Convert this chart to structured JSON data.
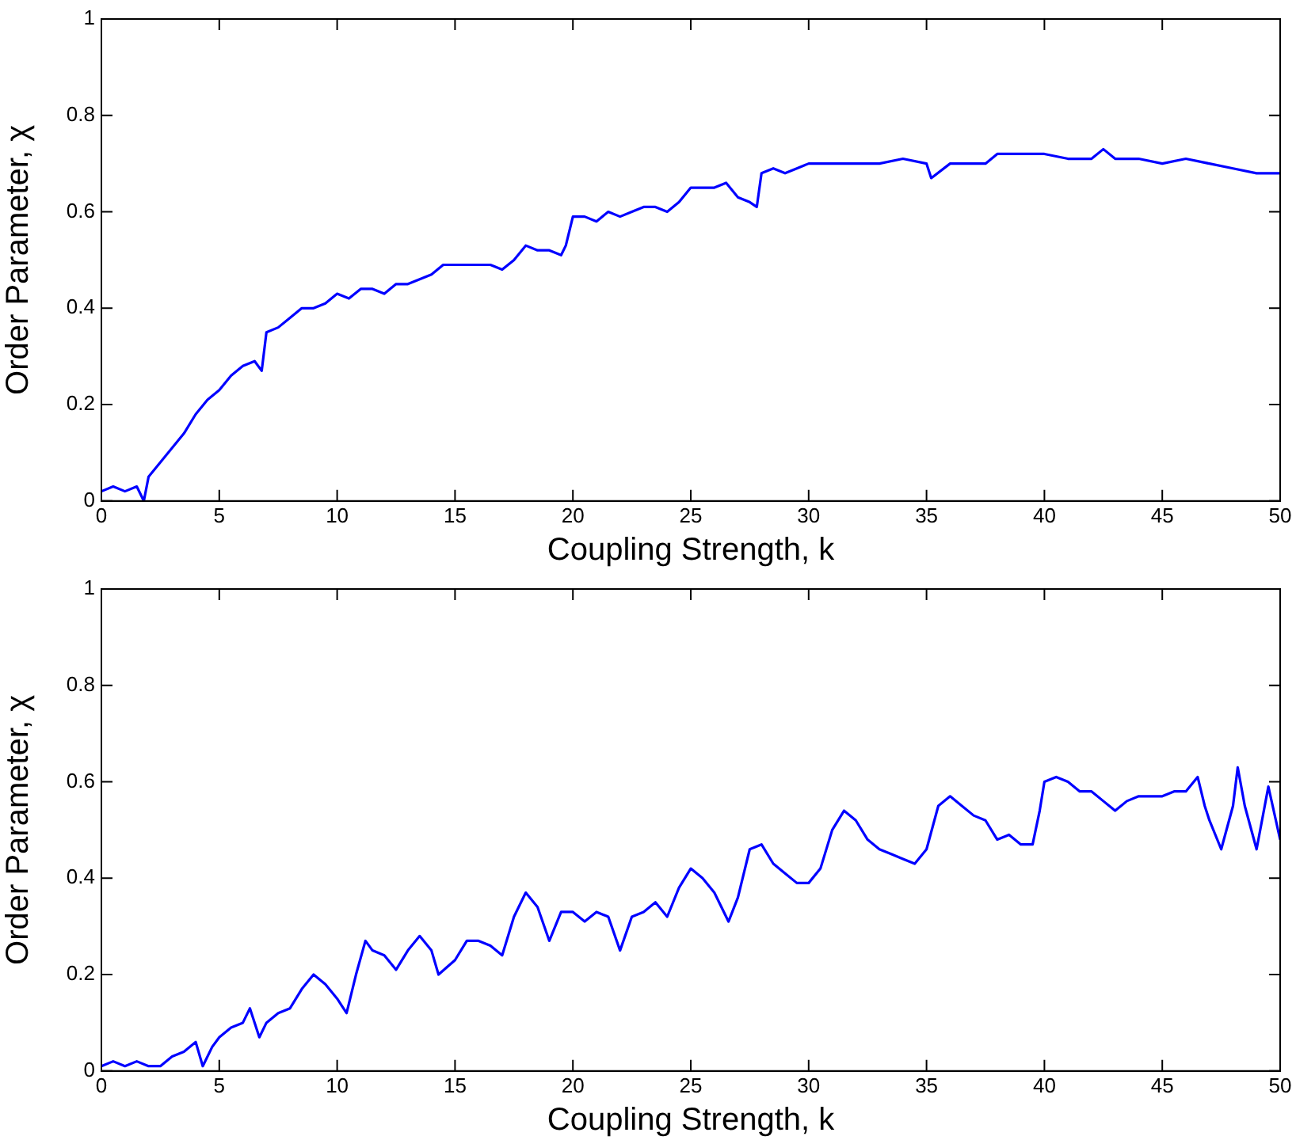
{
  "chart_data": [
    {
      "type": "line",
      "xlabel": "Coupling Strength, k",
      "ylabel": "Order Parameter, χ",
      "color": "#0000ff",
      "marker": "none",
      "xlim": [
        0,
        50
      ],
      "ylim": [
        0,
        1
      ],
      "xticks": [
        0,
        5,
        10,
        15,
        20,
        25,
        30,
        35,
        40,
        45,
        50
      ],
      "yticks": [
        0,
        0.2,
        0.4,
        0.6,
        0.8,
        1
      ],
      "x": [
        0,
        0.5,
        1,
        1.5,
        1.8,
        2,
        2.5,
        3,
        3.5,
        4,
        4.5,
        5,
        5.5,
        6,
        6.5,
        6.8,
        7,
        7.5,
        8,
        8.5,
        9,
        9.5,
        10,
        10.5,
        11,
        11.5,
        12,
        12.5,
        13,
        13.5,
        14,
        14.5,
        15,
        15.5,
        16,
        16.5,
        17,
        17.5,
        18,
        18.5,
        19,
        19.5,
        19.7,
        20,
        20.5,
        21,
        21.5,
        22,
        22.5,
        23,
        23.5,
        24,
        24.5,
        25,
        25.5,
        26,
        26.5,
        27,
        27.5,
        27.8,
        28,
        28.5,
        29,
        29.5,
        30,
        31,
        32,
        33,
        34,
        35,
        35.2,
        36,
        37,
        37.5,
        38,
        39,
        40,
        41,
        42,
        42.5,
        43,
        44,
        45,
        46,
        47,
        48,
        49,
        50
      ],
      "values": [
        0.02,
        0.03,
        0.02,
        0.03,
        0.0,
        0.05,
        0.08,
        0.11,
        0.14,
        0.18,
        0.21,
        0.23,
        0.26,
        0.28,
        0.29,
        0.27,
        0.35,
        0.36,
        0.38,
        0.4,
        0.4,
        0.41,
        0.43,
        0.42,
        0.44,
        0.44,
        0.43,
        0.45,
        0.45,
        0.46,
        0.47,
        0.49,
        0.49,
        0.49,
        0.49,
        0.49,
        0.48,
        0.5,
        0.53,
        0.52,
        0.52,
        0.51,
        0.53,
        0.59,
        0.59,
        0.58,
        0.6,
        0.59,
        0.6,
        0.61,
        0.61,
        0.6,
        0.62,
        0.65,
        0.65,
        0.65,
        0.66,
        0.63,
        0.62,
        0.61,
        0.68,
        0.69,
        0.68,
        0.69,
        0.7,
        0.7,
        0.7,
        0.7,
        0.71,
        0.7,
        0.67,
        0.7,
        0.7,
        0.7,
        0.72,
        0.72,
        0.72,
        0.71,
        0.71,
        0.73,
        0.71,
        0.71,
        0.7,
        0.71,
        0.7,
        0.69,
        0.68,
        0.68
      ]
    },
    {
      "type": "line",
      "xlabel": "Coupling Strength, k",
      "ylabel": "Order Parameter, χ",
      "color": "#0000ff",
      "marker": "none",
      "xlim": [
        0,
        50
      ],
      "ylim": [
        0,
        1
      ],
      "xticks": [
        0,
        5,
        10,
        15,
        20,
        25,
        30,
        35,
        40,
        45,
        50
      ],
      "yticks": [
        0,
        0.2,
        0.4,
        0.6,
        0.8,
        1
      ],
      "x": [
        0,
        0.5,
        1,
        1.5,
        2,
        2.5,
        3,
        3.5,
        4,
        4.3,
        4.7,
        5,
        5.5,
        6,
        6.3,
        6.7,
        7,
        7.5,
        8,
        8.5,
        9,
        9.5,
        10,
        10.4,
        10.8,
        11.2,
        11.5,
        12,
        12.5,
        13,
        13.5,
        14,
        14.3,
        15,
        15.5,
        16,
        16.5,
        17,
        17.5,
        18,
        18.5,
        19,
        19.5,
        20,
        20.5,
        21,
        21.5,
        22,
        22.5,
        23,
        23.5,
        24,
        24.5,
        25,
        25.5,
        26,
        26.6,
        27,
        27.5,
        28,
        28.5,
        29,
        29.5,
        30,
        30.5,
        31,
        31.5,
        32,
        32.5,
        33,
        33.5,
        34,
        34.5,
        35,
        35.5,
        36,
        36.5,
        37,
        37.5,
        38,
        38.5,
        39,
        39.5,
        39.8,
        40,
        40.5,
        41,
        41.5,
        42,
        42.5,
        43,
        43.5,
        44,
        44.5,
        45,
        45.5,
        46,
        46.5,
        46.8,
        47,
        47.5,
        48,
        48.2,
        48.5,
        49,
        49.5,
        50
      ],
      "values": [
        0.01,
        0.02,
        0.01,
        0.02,
        0.01,
        0.01,
        0.03,
        0.04,
        0.06,
        0.01,
        0.05,
        0.07,
        0.09,
        0.1,
        0.13,
        0.07,
        0.1,
        0.12,
        0.13,
        0.17,
        0.2,
        0.18,
        0.15,
        0.12,
        0.2,
        0.27,
        0.25,
        0.24,
        0.21,
        0.25,
        0.28,
        0.25,
        0.2,
        0.23,
        0.27,
        0.27,
        0.26,
        0.24,
        0.32,
        0.37,
        0.34,
        0.27,
        0.33,
        0.33,
        0.31,
        0.33,
        0.32,
        0.25,
        0.32,
        0.33,
        0.35,
        0.32,
        0.38,
        0.42,
        0.4,
        0.37,
        0.31,
        0.36,
        0.46,
        0.47,
        0.43,
        0.41,
        0.39,
        0.39,
        0.42,
        0.5,
        0.54,
        0.52,
        0.48,
        0.46,
        0.45,
        0.44,
        0.43,
        0.46,
        0.55,
        0.57,
        0.55,
        0.53,
        0.52,
        0.48,
        0.49,
        0.47,
        0.47,
        0.54,
        0.6,
        0.61,
        0.6,
        0.58,
        0.58,
        0.56,
        0.54,
        0.56,
        0.57,
        0.57,
        0.57,
        0.58,
        0.58,
        0.61,
        0.55,
        0.52,
        0.46,
        0.55,
        0.63,
        0.55,
        0.46,
        0.59,
        0.48
      ]
    }
  ]
}
